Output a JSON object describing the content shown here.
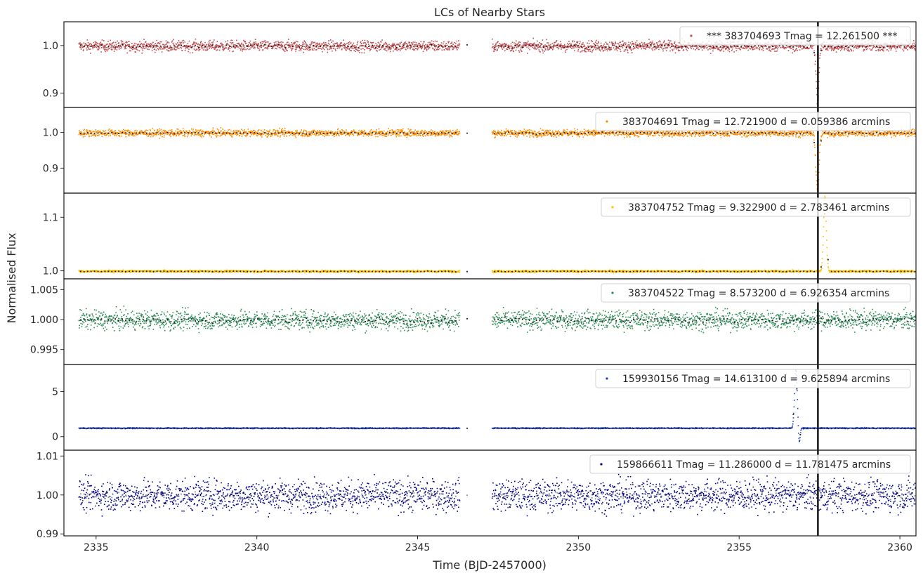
{
  "figure": {
    "title": "LCs of Nearby Stars",
    "xlabel": "Time (BJD-2457000)",
    "ylabel": "Normalised Flux"
  },
  "chart_data": {
    "type": "scatter",
    "title": "LCs of Nearby Stars",
    "xlabel": "Time (BJD-2457000)",
    "ylabel": "Normalised Flux",
    "xlim": [
      2334.0,
      2360.5
    ],
    "x_ticks": [
      2335,
      2340,
      2345,
      2350,
      2355,
      2360
    ],
    "x_tick_labels": [
      "2335",
      "2340",
      "2345",
      "2350",
      "2355",
      "2360"
    ],
    "data_gap": [
      2346.3,
      2347.3
    ],
    "event_line_x": 2357.45,
    "grid": false,
    "legend_position": "top-right",
    "panels": [
      {
        "label": "*** 383704693  Tmag = 12.261500 ***",
        "tic": "383704693",
        "tmag": 12.2615,
        "distance_arcmin": null,
        "color": "#c44e52",
        "binned_color": "#1a1a1a",
        "ylim": [
          0.87,
          1.05
        ],
        "y_ticks": [
          0.9,
          1.0
        ],
        "y_tick_labels": [
          "0.9",
          "1.0"
        ],
        "baseline": 1.0,
        "scatter": 0.008,
        "features": [
          {
            "center": 2357.42,
            "width": 0.06,
            "depth": 0.12
          }
        ]
      },
      {
        "label": "383704691  Tmag = 12.721900   d = 0.059386 arcmins",
        "tic": "383704691",
        "tmag": 12.7219,
        "distance_arcmin": 0.059386,
        "color": "#ff8c00",
        "binned_color": "#1a1a1a",
        "ylim": [
          0.83,
          1.07
        ],
        "y_ticks": [
          0.9,
          1.0
        ],
        "y_tick_labels": [
          "0.9",
          "1.0"
        ],
        "baseline": 1.0,
        "scatter": 0.007,
        "features": [
          {
            "center": 2357.42,
            "width": 0.07,
            "depth": 0.16
          }
        ]
      },
      {
        "label": "383704752  Tmag = 9.322900   d = 2.783461 arcmins",
        "tic": "383704752",
        "tmag": 9.3229,
        "distance_arcmin": 2.783461,
        "color": "#ffc000",
        "binned_color": "#1a1a1a",
        "ylim": [
          0.985,
          1.145
        ],
        "y_ticks": [
          1.0,
          1.1
        ],
        "y_tick_labels": [
          "1.0",
          "1.1"
        ],
        "baseline": 1.0,
        "scatter": 0.0015,
        "features": [
          {
            "center": 2357.65,
            "width": 0.06,
            "depth": -0.14
          }
        ]
      },
      {
        "label": "383704522  Tmag = 8.573200   d = 6.926354 arcmins",
        "tic": "383704522",
        "tmag": 8.5732,
        "distance_arcmin": 6.926354,
        "color": "#2e8b57",
        "binned_color": "#1a1a1a",
        "ylim": [
          0.9925,
          1.0068
        ],
        "y_ticks": [
          0.995,
          1.0,
          1.005
        ],
        "y_tick_labels": [
          "0.995",
          "1.000",
          "1.005"
        ],
        "baseline": 1.0,
        "scatter": 0.0011,
        "features": []
      },
      {
        "label": "159930156  Tmag = 14.613100   d = 9.625894 arcmins",
        "tic": "159930156",
        "tmag": 14.6131,
        "distance_arcmin": 9.625894,
        "color": "#1f3fbf",
        "binned_color": "#1a1a1a",
        "ylim": [
          -1.5,
          8.0
        ],
        "y_ticks": [
          0,
          5
        ],
        "y_tick_labels": [
          "0",
          "5"
        ],
        "baseline": 1.0,
        "scatter": 0.04,
        "features": [
          {
            "center": 2356.75,
            "width": 0.06,
            "depth": -6.5
          },
          {
            "center": 2356.85,
            "width": 0.04,
            "depth": 1.8
          }
        ]
      },
      {
        "label": "159866611  Tmag = 11.286000   d = 11.781475 arcmins",
        "tic": "159866611",
        "tmag": 11.286,
        "distance_arcmin": 11.781475,
        "color": "#000080",
        "binned_color": "#8c8c8c",
        "ylim": [
          0.9895,
          1.0115
        ],
        "y_ticks": [
          0.99,
          1.0,
          1.01
        ],
        "y_tick_labels": [
          "0.99",
          "1.00",
          "1.01"
        ],
        "baseline": 1.0,
        "scatter": 0.0028,
        "features": []
      }
    ]
  }
}
